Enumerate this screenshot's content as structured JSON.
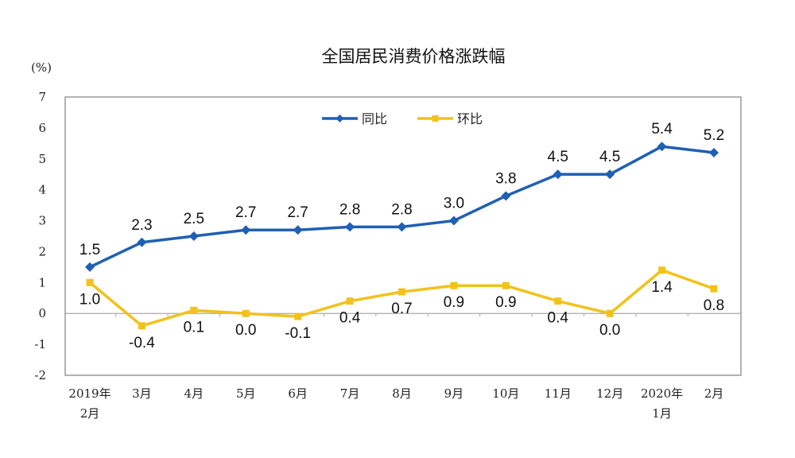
{
  "chart_data": {
    "type": "line",
    "title": "全国居民消费价格涨跌幅",
    "ylabel": "(%)",
    "xlabel": "",
    "ylim": [
      -2,
      7
    ],
    "yticks": [
      "7",
      "6",
      "5",
      "4",
      "3",
      "2",
      "1",
      "0",
      "-1",
      "-2"
    ],
    "categories": [
      [
        "2019年",
        "2月"
      ],
      [
        "3月"
      ],
      [
        "4月"
      ],
      [
        "5月"
      ],
      [
        "6月"
      ],
      [
        "7月"
      ],
      [
        "8月"
      ],
      [
        "9月"
      ],
      [
        "10月"
      ],
      [
        "11月"
      ],
      [
        "12月"
      ],
      [
        "2020年",
        "1月"
      ],
      [
        "2月"
      ]
    ],
    "legend_position": "top-center",
    "grid": false,
    "series": [
      {
        "name": "同比",
        "color": "#1f5fb4",
        "marker": "diamond",
        "values": [
          1.5,
          2.3,
          2.5,
          2.7,
          2.7,
          2.8,
          2.8,
          3.0,
          3.8,
          4.5,
          4.5,
          5.4,
          5.2
        ],
        "labels": [
          "1.5",
          "2.3",
          "2.5",
          "2.7",
          "2.7",
          "2.8",
          "2.8",
          "3.0",
          "3.8",
          "4.5",
          "4.5",
          "5.4",
          "5.2"
        ]
      },
      {
        "name": "环比",
        "color": "#f2c21b",
        "marker": "square",
        "values": [
          1.0,
          -0.4,
          0.1,
          0.0,
          -0.1,
          0.4,
          0.7,
          0.9,
          0.9,
          0.4,
          0.0,
          1.4,
          0.8
        ],
        "labels": [
          "1.0",
          "-0.4",
          "0.1",
          "0.0",
          "-0.1",
          "0.4",
          "0.7",
          "0.9",
          "0.9",
          "0.4",
          "0.0",
          "1.4",
          "0.8"
        ]
      }
    ]
  }
}
